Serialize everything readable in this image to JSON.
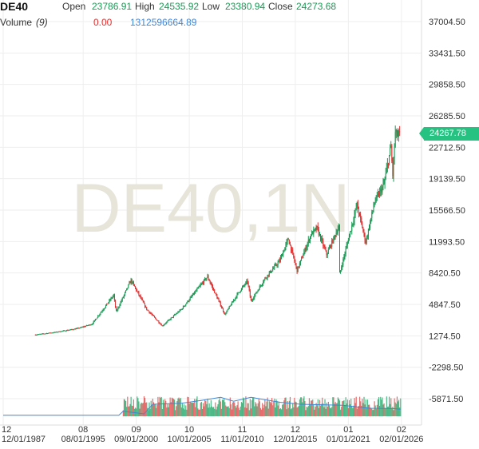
{
  "header": {
    "symbol": "DE40",
    "open_label": "Open",
    "open_value": "23786.91",
    "high_label": "High",
    "high_value": "24535.92",
    "low_label": "Low",
    "low_value": "23380.94",
    "close_label": "Close",
    "close_value": "24273.68"
  },
  "volume_legend": {
    "label": "Volume",
    "period": "(9)",
    "value": "0.00",
    "ma_value": "1312596664.89"
  },
  "watermark": "DE40,1N",
  "last_price_label": "24267.78",
  "colors": {
    "up": "#1a9a55",
    "down": "#e03030",
    "volume_line": "#3f86d6",
    "volume_up": "#2fae73",
    "volume_down": "#e05555",
    "grid": "#eeeeee",
    "price_tag": "#26c281",
    "watermark": "#e7e4da"
  },
  "chart_data": [
    {
      "type": "line",
      "subtype": "candlestick",
      "symbol": "DE40",
      "interval": "1N",
      "xlabel": "",
      "ylabel": "",
      "ylim": [
        -6500,
        38500
      ],
      "y_ticks": [
        37004.5,
        33431.5,
        29858.5,
        26285.5,
        22712.5,
        19139.5,
        15566.5,
        11993.5,
        8420.5,
        4847.5,
        1274.5,
        -2298.5,
        -5871.5
      ],
      "y_tick_labels": [
        "37004.50",
        "33431.50",
        "29858.50",
        "26285.50",
        "22712.50",
        "19139.50",
        "15566.50",
        "11993.50",
        "8420.50",
        "4847.50",
        "1274.50",
        "-2298.50",
        "-5871.50"
      ],
      "x_range": [
        "1987-12-01",
        "2026-05-01"
      ],
      "x_ticks": [
        {
          "date": "1987-12-01",
          "top": "12",
          "bottom": "12/01/1987"
        },
        {
          "date": "1995-08-01",
          "top": "08",
          "bottom": "08/01/1995"
        },
        {
          "date": "2000-09-01",
          "top": "09",
          "bottom": "09/01/2000"
        },
        {
          "date": "2005-10-01",
          "top": "10",
          "bottom": "10/01/2005"
        },
        {
          "date": "2010-11-01",
          "top": "11",
          "bottom": "11/01/2010"
        },
        {
          "date": "2015-12-01",
          "top": "12",
          "bottom": "12/01/2015"
        },
        {
          "date": "2021-01-01",
          "top": "01",
          "bottom": "01/01/2021"
        },
        {
          "date": "2026-02-01",
          "top": "02",
          "bottom": "02/01/2026"
        }
      ],
      "series": [
        {
          "name": "DE40",
          "points": [
            {
              "x": "1991-01-01",
              "y": 1400
            },
            {
              "x": "1993-01-01",
              "y": 1700
            },
            {
              "x": "1995-01-01",
              "y": 2100
            },
            {
              "x": "1996-06-01",
              "y": 2600
            },
            {
              "x": "1997-07-01",
              "y": 4300
            },
            {
              "x": "1998-07-01",
              "y": 5900
            },
            {
              "x": "1998-10-01",
              "y": 4000
            },
            {
              "x": "2000-03-01",
              "y": 7600
            },
            {
              "x": "2001-09-01",
              "y": 4300
            },
            {
              "x": "2003-03-01",
              "y": 2400
            },
            {
              "x": "2005-01-01",
              "y": 4300
            },
            {
              "x": "2007-07-01",
              "y": 8000
            },
            {
              "x": "2009-03-01",
              "y": 3700
            },
            {
              "x": "2010-06-01",
              "y": 6100
            },
            {
              "x": "2011-05-01",
              "y": 7500
            },
            {
              "x": "2011-09-01",
              "y": 5200
            },
            {
              "x": "2013-01-01",
              "y": 7800
            },
            {
              "x": "2014-06-01",
              "y": 9800
            },
            {
              "x": "2015-04-01",
              "y": 12300
            },
            {
              "x": "2016-02-01",
              "y": 8700
            },
            {
              "x": "2017-06-01",
              "y": 12800
            },
            {
              "x": "2018-01-01",
              "y": 13500
            },
            {
              "x": "2018-12-01",
              "y": 10500
            },
            {
              "x": "2020-02-01",
              "y": 13700
            },
            {
              "x": "2020-03-01",
              "y": 8300
            },
            {
              "x": "2021-11-01",
              "y": 16200
            },
            {
              "x": "2022-09-01",
              "y": 11900
            },
            {
              "x": "2023-07-01",
              "y": 16400
            },
            {
              "x": "2024-06-01",
              "y": 18500
            },
            {
              "x": "2025-02-01",
              "y": 22800
            },
            {
              "x": "2025-04-01",
              "y": 19500
            },
            {
              "x": "2025-07-01",
              "y": 24300
            },
            {
              "x": "2025-10-01",
              "y": 24000
            },
            {
              "x": "2026-01-01",
              "y": 24268
            }
          ]
        }
      ],
      "last_price": 24267.78
    },
    {
      "type": "bar",
      "name": "Volume",
      "period": 9,
      "notes": "volume bars appear only from mid-1999; moving-average line flat near zero before",
      "volume_ma_points": [
        {
          "x": "1987-12-01",
          "y": 0.05
        },
        {
          "x": "1999-01-01",
          "y": 0.05
        },
        {
          "x": "1999-06-01",
          "y": 0.25
        },
        {
          "x": "2001-06-01",
          "y": 0.12
        },
        {
          "x": "2002-04-01",
          "y": 0.6
        },
        {
          "x": "2005-01-01",
          "y": 0.65
        },
        {
          "x": "2007-01-01",
          "y": 0.8
        },
        {
          "x": "2008-10-01",
          "y": 0.95
        },
        {
          "x": "2010-01-01",
          "y": 0.75
        },
        {
          "x": "2011-09-01",
          "y": 0.95
        },
        {
          "x": "2014-06-01",
          "y": 0.7
        },
        {
          "x": "2016-06-01",
          "y": 0.6
        },
        {
          "x": "2020-06-01",
          "y": 0.55
        },
        {
          "x": "2023-01-01",
          "y": 0.4
        },
        {
          "x": "2025-06-01",
          "y": 0.38
        },
        {
          "x": "2026-01-01",
          "y": 0.35
        }
      ]
    }
  ]
}
